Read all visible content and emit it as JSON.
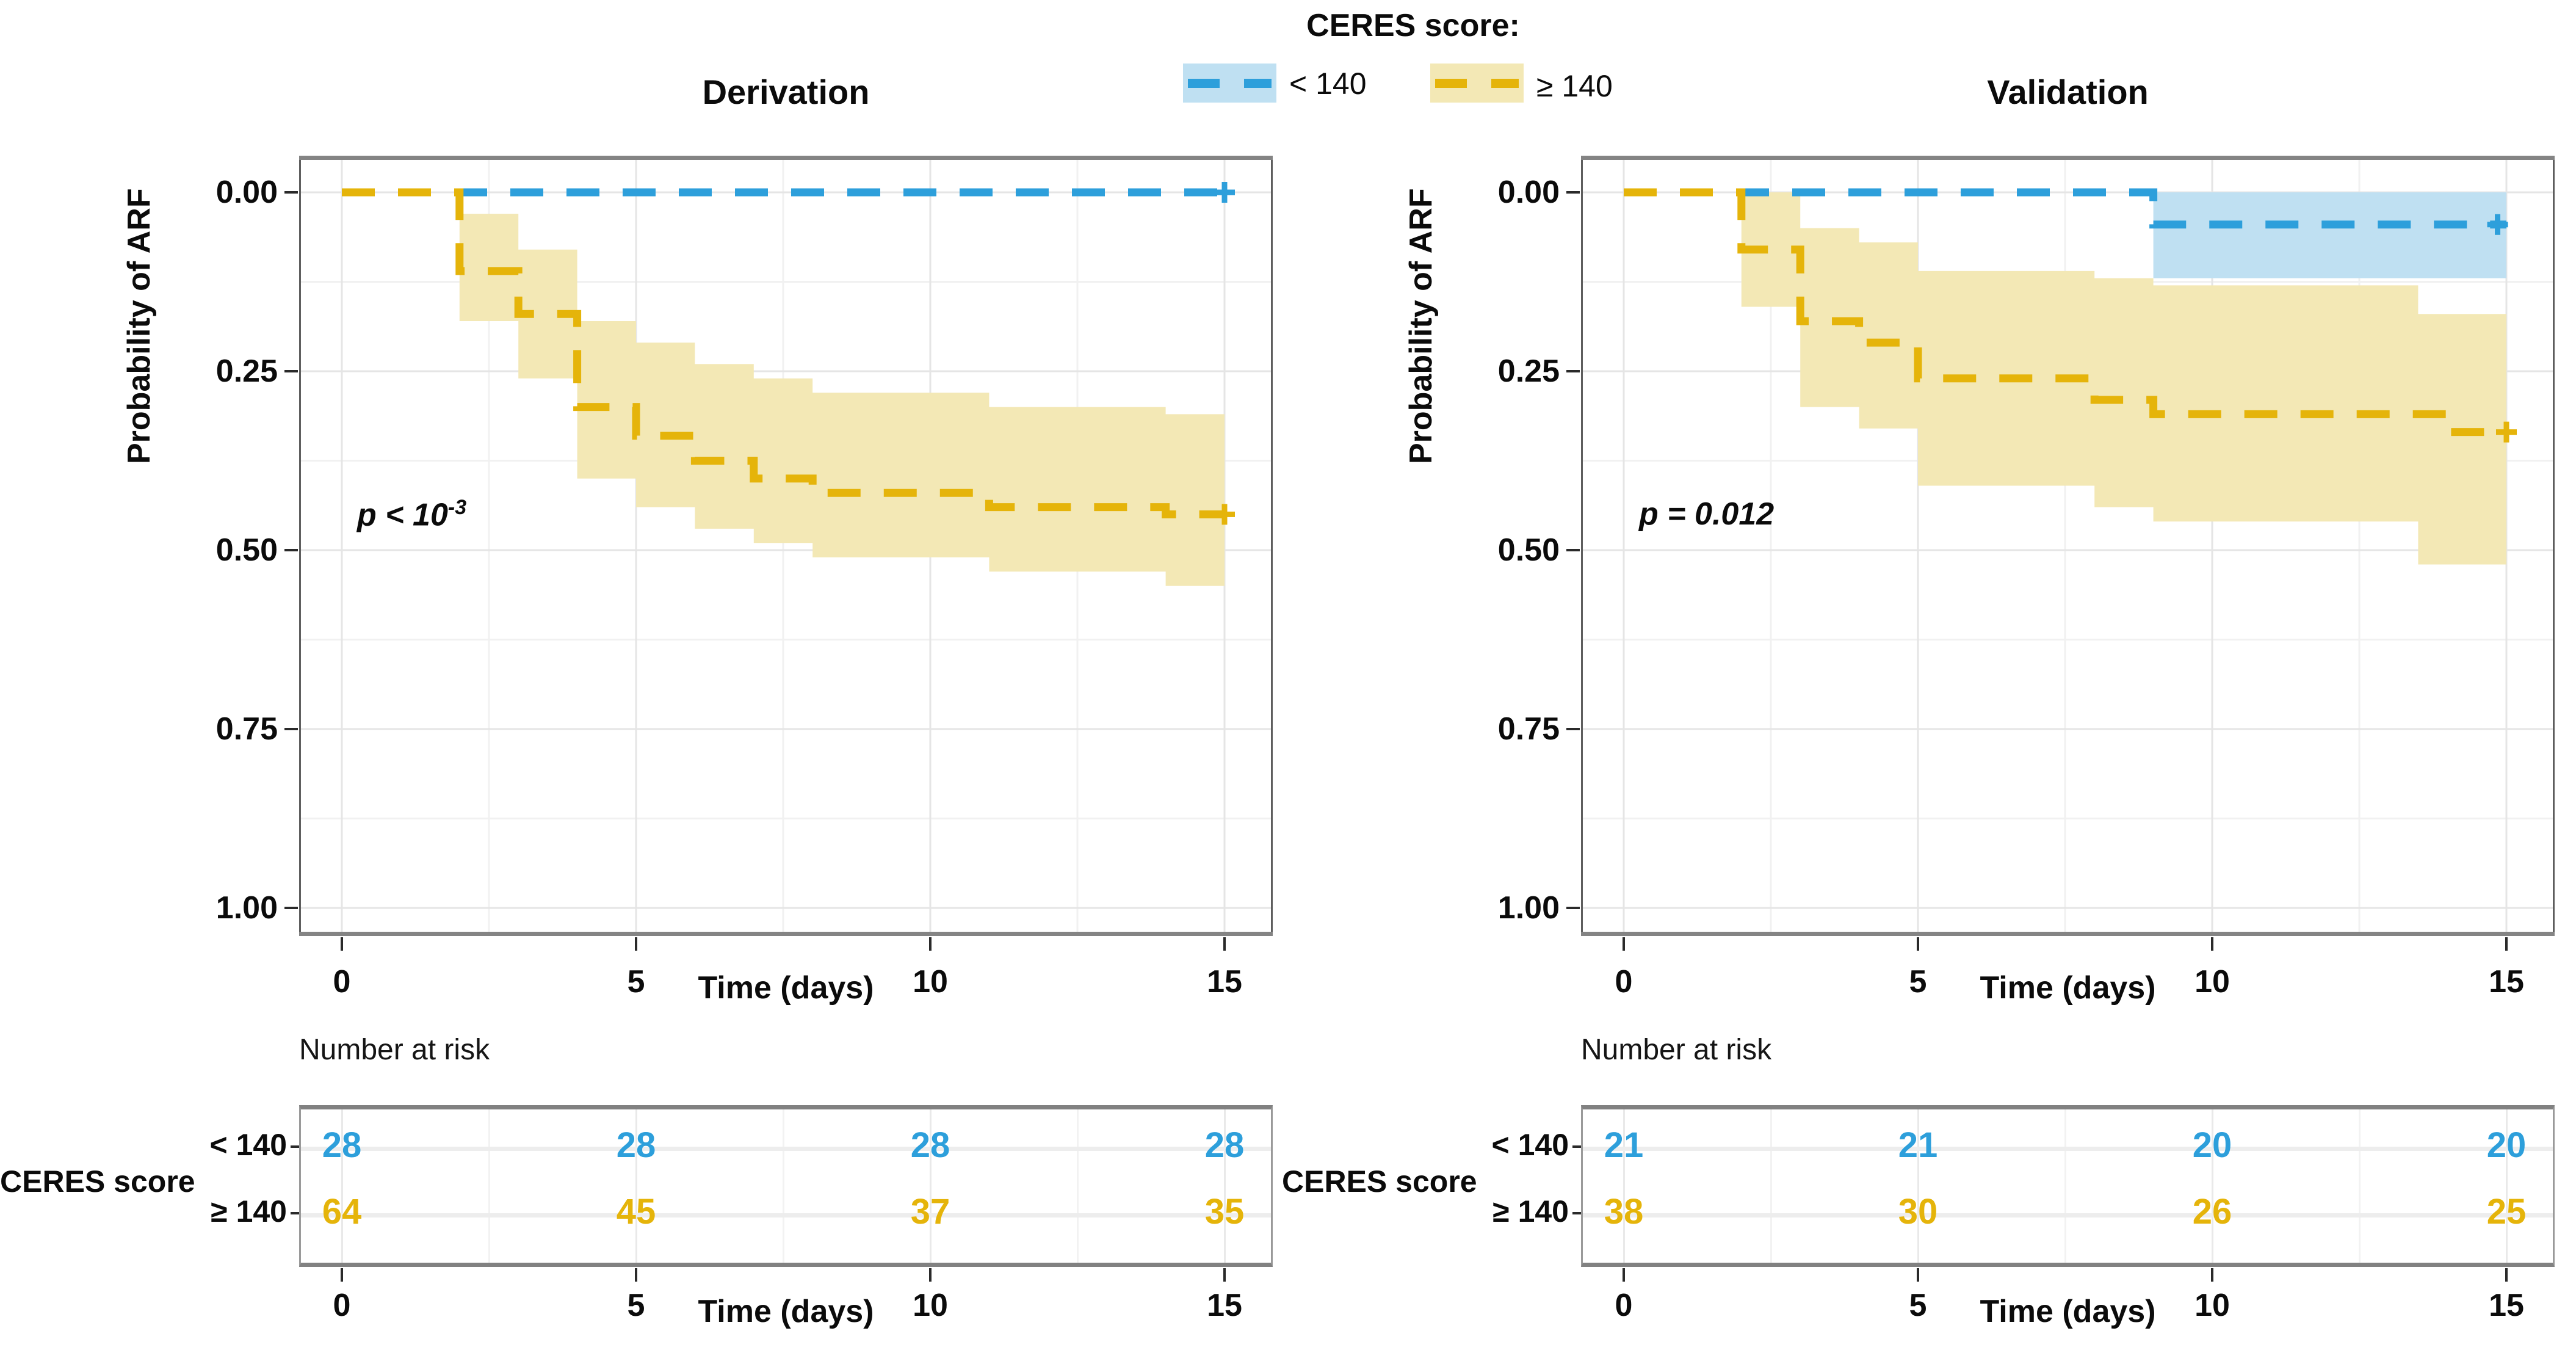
{
  "legend": {
    "title": "CERES score:",
    "items": [
      {
        "label": "< 140",
        "color_key": "blue"
      },
      {
        "label": "≥ 140",
        "color_key": "yellow"
      }
    ]
  },
  "colors": {
    "blue": {
      "line": "#2D9FDB",
      "band": "#BFE0F2"
    },
    "yellow": {
      "line": "#E5B40A",
      "band": "#F3E8B5"
    },
    "grid_major": "#E5E5E5",
    "grid_minor": "#F1F1F1",
    "panel_border": "#5E5E5E",
    "panel_border_thick": "#848484",
    "text": "#0B0B0B"
  },
  "axes": {
    "x_title": "Time (days)",
    "y_title": "Probability of ARF",
    "x_ticks": [
      {
        "v": 0,
        "label": "0"
      },
      {
        "v": 5,
        "label": "5"
      },
      {
        "v": 10,
        "label": "10"
      },
      {
        "v": 15,
        "label": "15"
      }
    ],
    "x_minor": [
      2.5,
      7.5,
      12.5
    ],
    "y_ticks": [
      {
        "v": 0,
        "label": "0.00"
      },
      {
        "v": 0.25,
        "label": "0.25"
      },
      {
        "v": 0.5,
        "label": "0.50"
      },
      {
        "v": 0.75,
        "label": "0.75"
      },
      {
        "v": 1,
        "label": "1.00"
      }
    ],
    "y_minor": [
      0.125,
      0.375,
      0.625,
      0.875
    ]
  },
  "risk": {
    "header": "Number at risk",
    "group_label": "CERES score"
  },
  "chart_data": [
    {
      "type": "line",
      "km_variant": "kaplan_meier_cumulative_incidence",
      "title": "Derivation",
      "p_value": {
        "main": "p < 10",
        "sup": "-3"
      },
      "xlabel": "Time (days)",
      "ylabel": "Probability of ARF",
      "xlim": [
        0,
        15
      ],
      "ylim": [
        0,
        1
      ],
      "y_axis_inverted": true,
      "grid": true,
      "legend_position": "top-center",
      "series": [
        {
          "name": "< 140",
          "color_key": "blue",
          "steps": [
            [
              0,
              0
            ],
            [
              15,
              0
            ]
          ],
          "censor_marks": [
            [
              15,
              0
            ]
          ],
          "ci_band": []
        },
        {
          "name": "≥ 140",
          "color_key": "yellow",
          "steps": [
            [
              0,
              0
            ],
            [
              2,
              0.11
            ],
            [
              3,
              0.17
            ],
            [
              4,
              0.3
            ],
            [
              5,
              0.34
            ],
            [
              6,
              0.375
            ],
            [
              7,
              0.4
            ],
            [
              8,
              0.42
            ],
            [
              11,
              0.44
            ],
            [
              14,
              0.45
            ],
            [
              15,
              0.45
            ]
          ],
          "censor_marks": [
            [
              15,
              0.45
            ]
          ],
          "ci_band": [
            [
              2,
              0.03,
              0.18
            ],
            [
              3,
              0.08,
              0.26
            ],
            [
              4,
              0.18,
              0.4
            ],
            [
              5,
              0.21,
              0.44
            ],
            [
              6,
              0.24,
              0.47
            ],
            [
              7,
              0.26,
              0.49
            ],
            [
              8,
              0.28,
              0.51
            ],
            [
              11,
              0.3,
              0.53
            ],
            [
              14,
              0.31,
              0.55
            ],
            [
              15,
              0.31,
              0.55
            ]
          ]
        }
      ],
      "risk_table": {
        "rows": [
          {
            "label": "< 140",
            "color_key": "blue",
            "values": [
              "28",
              "28",
              "28",
              "28"
            ]
          },
          {
            "label": "≥ 140",
            "color_key": "yellow",
            "values": [
              "64",
              "45",
              "37",
              "35"
            ]
          }
        ]
      }
    },
    {
      "type": "line",
      "km_variant": "kaplan_meier_cumulative_incidence",
      "title": "Validation",
      "p_value": {
        "main": "p = 0.012",
        "sup": ""
      },
      "xlabel": "Time (days)",
      "ylabel": "Probability of ARF",
      "xlim": [
        0,
        15
      ],
      "ylim": [
        0,
        1
      ],
      "y_axis_inverted": true,
      "grid": true,
      "legend_position": "top-center",
      "series": [
        {
          "name": "< 140",
          "color_key": "blue",
          "steps": [
            [
              0,
              0
            ],
            [
              9,
              0.045
            ],
            [
              15,
              0.045
            ]
          ],
          "censor_marks": [
            [
              14.85,
              0.045
            ]
          ],
          "ci_band": [
            [
              9,
              0.0,
              0.12
            ],
            [
              15,
              0.0,
              0.12
            ]
          ]
        },
        {
          "name": "≥ 140",
          "color_key": "yellow",
          "steps": [
            [
              0,
              0
            ],
            [
              2,
              0.08
            ],
            [
              3,
              0.18
            ],
            [
              4,
              0.21
            ],
            [
              5,
              0.26
            ],
            [
              8,
              0.29
            ],
            [
              9,
              0.31
            ],
            [
              14,
              0.335
            ],
            [
              15,
              0.335
            ]
          ],
          "censor_marks": [
            [
              15,
              0.335
            ]
          ],
          "ci_band": [
            [
              2,
              0.0,
              0.16
            ],
            [
              3,
              0.05,
              0.3
            ],
            [
              4,
              0.07,
              0.33
            ],
            [
              5,
              0.11,
              0.41
            ],
            [
              8,
              0.12,
              0.44
            ],
            [
              9,
              0.13,
              0.46
            ],
            [
              13.5,
              0.17,
              0.52
            ],
            [
              15,
              0.17,
              0.52
            ]
          ]
        }
      ],
      "risk_table": {
        "rows": [
          {
            "label": "< 140",
            "color_key": "blue",
            "values": [
              "21",
              "21",
              "20",
              "20"
            ]
          },
          {
            "label": "≥ 140",
            "color_key": "yellow",
            "values": [
              "38",
              "30",
              "26",
              "25"
            ]
          }
        ]
      }
    }
  ]
}
